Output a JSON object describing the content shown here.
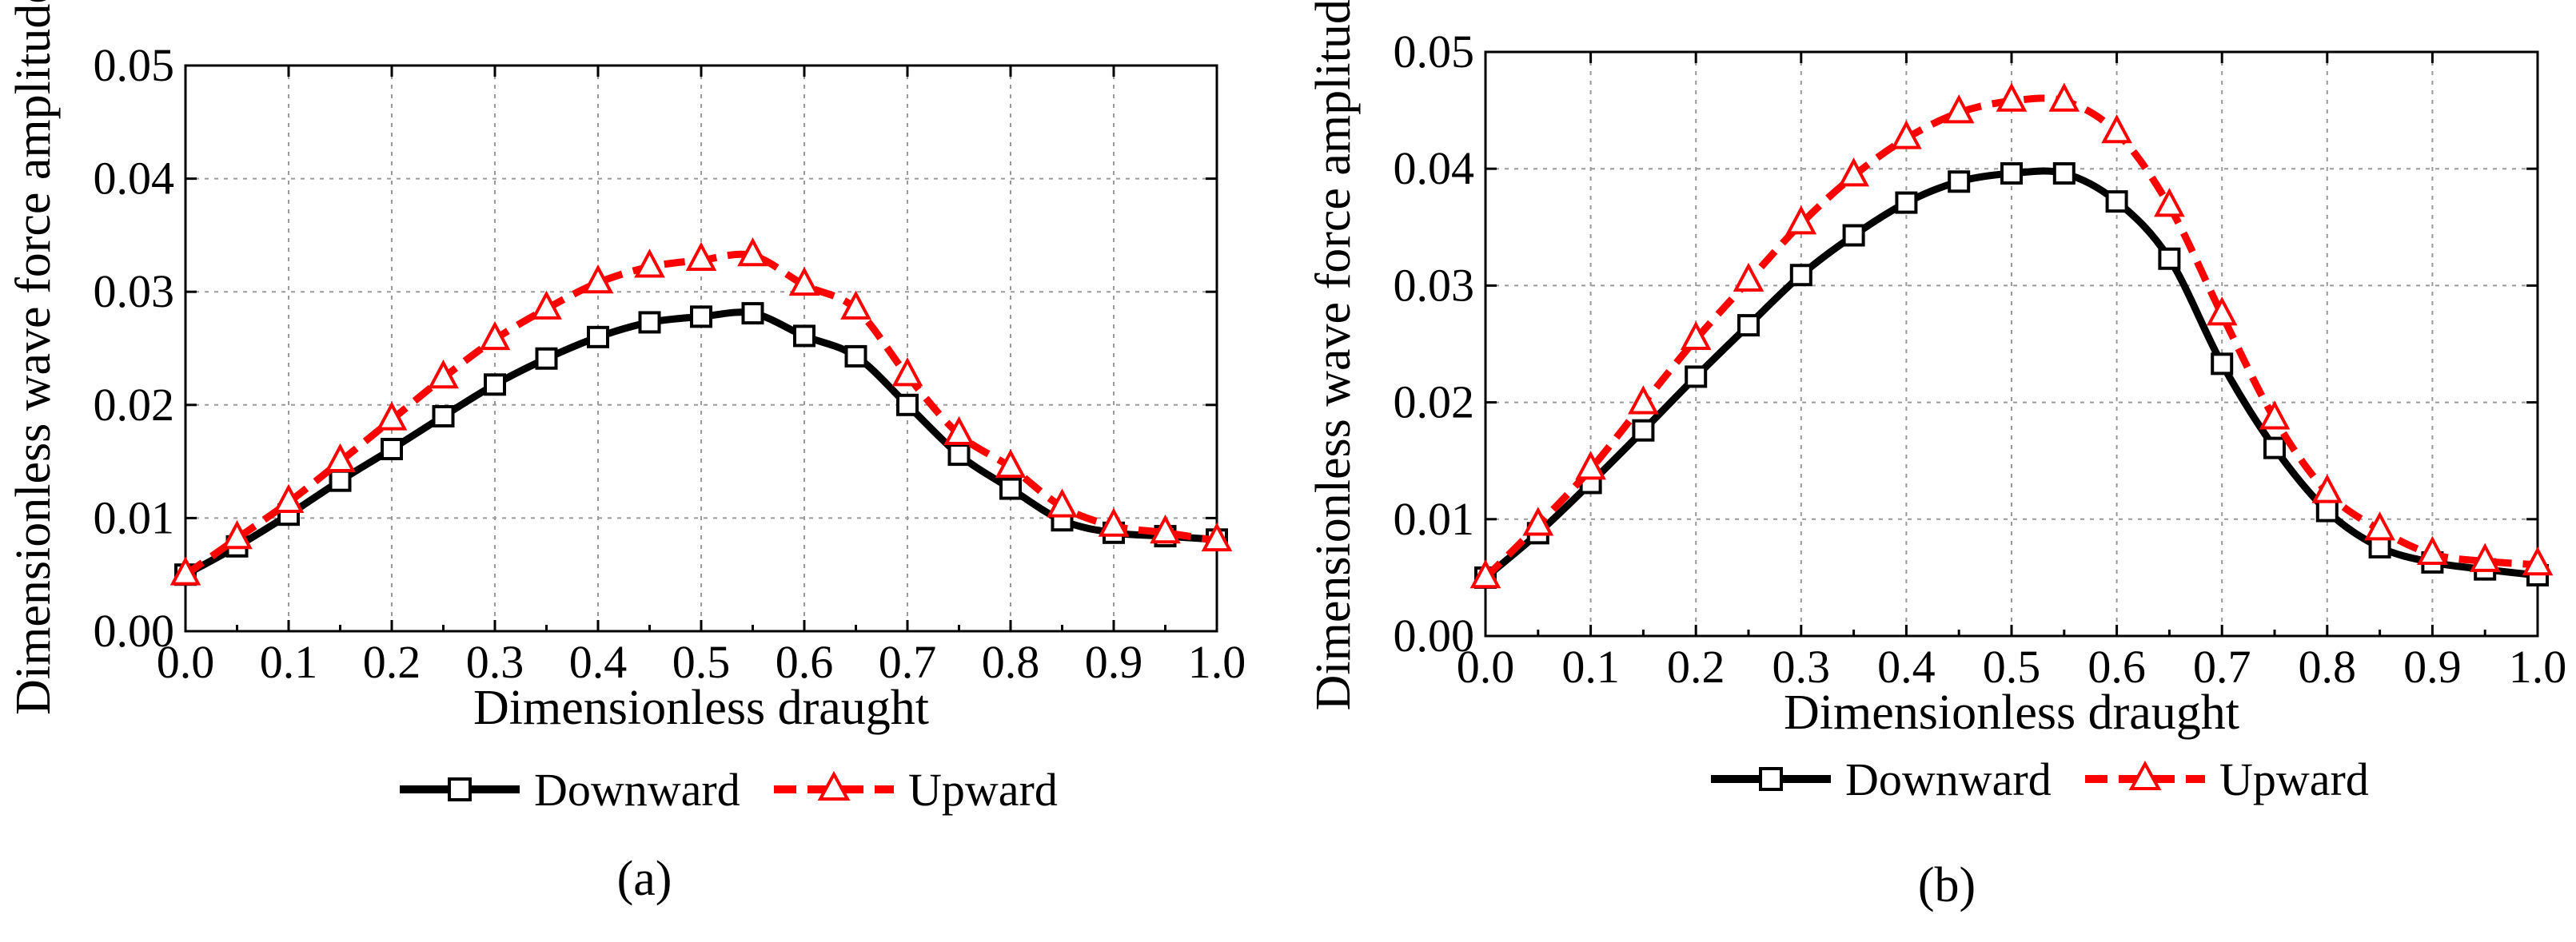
{
  "chart_data": [
    {
      "type": "line",
      "panel_label": "(a)",
      "xlabel": "Dimensionless draught",
      "ylabel": "Dimensionless wave force amplitude",
      "xlim": [
        0,
        1.0
      ],
      "ylim": [
        0,
        0.05
      ],
      "xticks": [
        "0.0",
        "0.1",
        "0.2",
        "0.3",
        "0.4",
        "0.5",
        "0.6",
        "0.7",
        "0.8",
        "0.9",
        "1.0"
      ],
      "yticks": [
        "0.00",
        "0.01",
        "0.02",
        "0.03",
        "0.04",
        "0.05"
      ],
      "grid": true,
      "legend": "bottom",
      "x": [
        0,
        0.05,
        0.1,
        0.15,
        0.2,
        0.25,
        0.3,
        0.35,
        0.4,
        0.45,
        0.5,
        0.55,
        0.6,
        0.65,
        0.7,
        0.75,
        0.8,
        0.85,
        0.9,
        0.95,
        1.0
      ],
      "series": [
        {
          "name": "Downward",
          "color": "#000000",
          "marker": "square",
          "style": "solid",
          "values": [
            0.005,
            0.0075,
            0.0103,
            0.0133,
            0.0161,
            0.019,
            0.0218,
            0.0241,
            0.026,
            0.0273,
            0.0278,
            0.0281,
            0.0261,
            0.0243,
            0.02,
            0.0156,
            0.0126,
            0.0098,
            0.0087,
            0.0084,
            0.0081
          ]
        },
        {
          "name": "Upward",
          "color": "#ff0000",
          "marker": "triangle",
          "style": "dashed",
          "values": [
            0.005,
            0.0082,
            0.0114,
            0.015,
            0.0187,
            0.0224,
            0.0258,
            0.0285,
            0.0308,
            0.0322,
            0.0328,
            0.0332,
            0.0306,
            0.0285,
            0.0226,
            0.0174,
            0.0145,
            0.011,
            0.0093,
            0.0087,
            0.008
          ]
        }
      ]
    },
    {
      "type": "line",
      "panel_label": "(b)",
      "xlabel": "Dimensionless draught",
      "ylabel": "Dimensionless wave force amplitude",
      "xlim": [
        0,
        1.0
      ],
      "ylim": [
        0,
        0.05
      ],
      "xticks": [
        "0.0",
        "0.1",
        "0.2",
        "0.3",
        "0.4",
        "0.5",
        "0.6",
        "0.7",
        "0.8",
        "0.9",
        "1.0"
      ],
      "yticks": [
        "0.00",
        "0.01",
        "0.02",
        "0.03",
        "0.04",
        "0.05"
      ],
      "grid": true,
      "legend": "bottom",
      "x": [
        0,
        0.05,
        0.1,
        0.15,
        0.2,
        0.25,
        0.3,
        0.35,
        0.4,
        0.45,
        0.5,
        0.55,
        0.6,
        0.65,
        0.7,
        0.75,
        0.8,
        0.85,
        0.9,
        0.95,
        1.0
      ],
      "series": [
        {
          "name": "Downward",
          "color": "#000000",
          "marker": "square",
          "style": "solid",
          "values": [
            0.005,
            0.0088,
            0.0131,
            0.0176,
            0.0222,
            0.0266,
            0.0309,
            0.0343,
            0.0371,
            0.0389,
            0.0396,
            0.0396,
            0.0372,
            0.0323,
            0.0233,
            0.0161,
            0.0107,
            0.0076,
            0.0063,
            0.0057,
            0.0052
          ]
        },
        {
          "name": "Upward",
          "color": "#ff0000",
          "marker": "triangle",
          "style": "dashed",
          "values": [
            0.005,
            0.0095,
            0.0143,
            0.0199,
            0.0254,
            0.0304,
            0.0353,
            0.0394,
            0.0426,
            0.0448,
            0.0458,
            0.0458,
            0.0431,
            0.0368,
            0.0275,
            0.0186,
            0.0123,
            0.0091,
            0.007,
            0.0064,
            0.0061
          ]
        }
      ]
    }
  ]
}
